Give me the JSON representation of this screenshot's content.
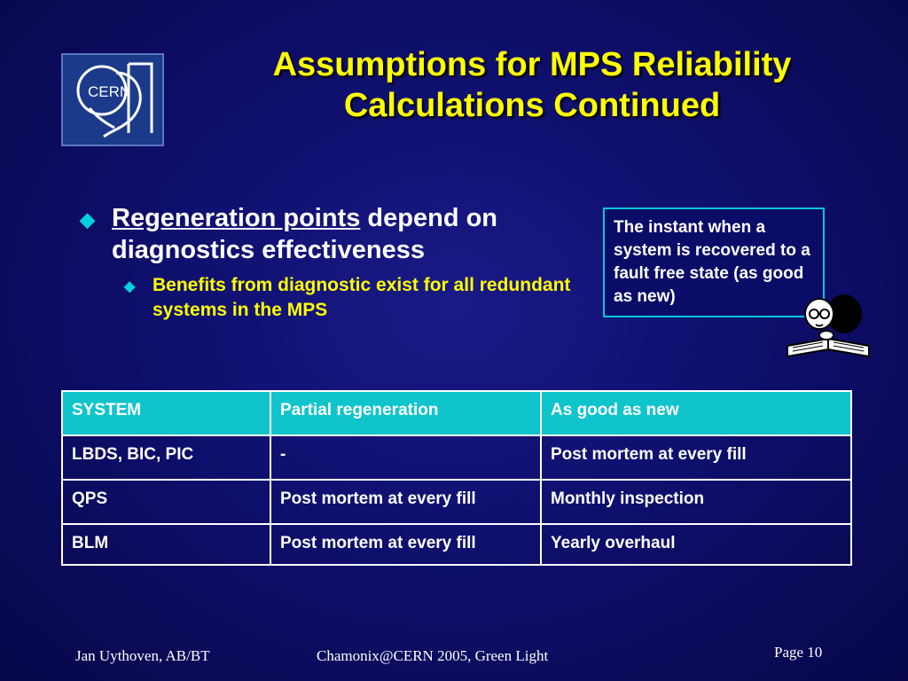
{
  "logo": {
    "text": "CERN"
  },
  "slide": {
    "title_line1": "Assumptions for MPS Reliability",
    "title_line2": "Calculations Continued"
  },
  "bullets": {
    "main_underlined": "Regeneration points",
    "main_rest": " depend on diagnostics effectiveness",
    "sub": "Benefits from diagnostic exist for all redundant systems in the MPS"
  },
  "callout": {
    "text": "The instant when a system is recovered to a fault free state (as good as new)"
  },
  "table": {
    "header": [
      "SYSTEM",
      "Partial regeneration",
      "As good as new"
    ],
    "rows": [
      [
        "LBDS, BIC, PIC",
        "-",
        "Post mortem at every fill"
      ],
      [
        "QPS",
        "Post mortem at every fill",
        "Monthly inspection"
      ],
      [
        "BLM",
        "Post mortem at every fill",
        "Yearly overhaul"
      ]
    ]
  },
  "footer": {
    "author": "Jan Uythoven, AB/BT",
    "event": "Chamonix@CERN  2005, Green Light",
    "page": "Page 10"
  },
  "colors": {
    "title": "#ffff00",
    "accent": "#10c4cc",
    "background": "#0f0f6e"
  }
}
